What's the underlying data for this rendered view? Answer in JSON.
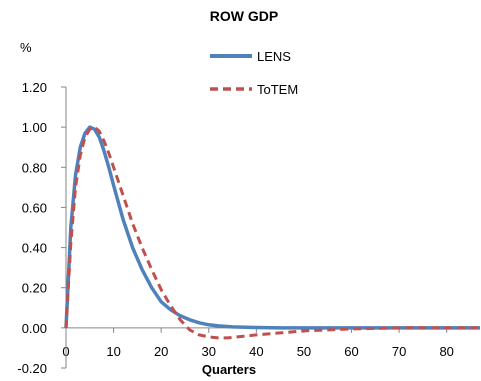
{
  "chart_data": {
    "type": "line",
    "title": "ROW GDP",
    "unit_label": "%",
    "xlabel": "Quarters",
    "ylabel": "",
    "xlim": [
      0,
      87
    ],
    "ylim": [
      -0.2,
      1.2
    ],
    "x_ticks": [
      0,
      10,
      20,
      30,
      40,
      50,
      60,
      70,
      80
    ],
    "y_ticks": [
      -0.2,
      0.0,
      0.2,
      0.4,
      0.6,
      0.8,
      1.0,
      1.2
    ],
    "y_tick_labels": [
      "-0.20",
      "0.00",
      "0.20",
      "0.40",
      "0.60",
      "0.80",
      "1.00",
      "1.20"
    ],
    "x_tick_labels": [
      "0",
      "10",
      "20",
      "30",
      "40",
      "50",
      "60",
      "70",
      "80"
    ],
    "grid": false,
    "legend_position": "top-right",
    "series": [
      {
        "name": "LENS",
        "color": "#4f81bd",
        "style": "solid",
        "x": [
          0,
          1,
          2,
          3,
          4,
          5,
          6,
          7,
          8,
          9,
          10,
          12,
          14,
          16,
          18,
          20,
          22,
          24,
          26,
          28,
          30,
          32,
          35,
          40,
          45,
          50,
          60,
          70,
          87
        ],
        "y": [
          0.0,
          0.5,
          0.76,
          0.9,
          0.97,
          1.0,
          0.99,
          0.95,
          0.88,
          0.8,
          0.71,
          0.54,
          0.4,
          0.29,
          0.2,
          0.13,
          0.09,
          0.06,
          0.04,
          0.025,
          0.015,
          0.01,
          0.005,
          0.002,
          0.0,
          0.0,
          0.0,
          0.0,
          0.0
        ]
      },
      {
        "name": "ToTEM",
        "color": "#c0504d",
        "style": "dashed",
        "x": [
          0,
          1,
          2,
          3,
          4,
          5,
          6,
          7,
          8,
          9,
          10,
          12,
          14,
          16,
          18,
          20,
          22,
          24,
          26,
          28,
          30,
          32,
          34,
          36,
          38,
          40,
          45,
          50,
          55,
          60,
          70,
          87
        ],
        "y": [
          0.0,
          0.42,
          0.7,
          0.86,
          0.95,
          0.99,
          1.0,
          0.98,
          0.93,
          0.87,
          0.8,
          0.66,
          0.52,
          0.4,
          0.29,
          0.19,
          0.11,
          0.04,
          -0.01,
          -0.035,
          -0.045,
          -0.05,
          -0.05,
          -0.045,
          -0.04,
          -0.035,
          -0.025,
          -0.015,
          -0.01,
          -0.005,
          0.0,
          0.0
        ]
      }
    ]
  }
}
